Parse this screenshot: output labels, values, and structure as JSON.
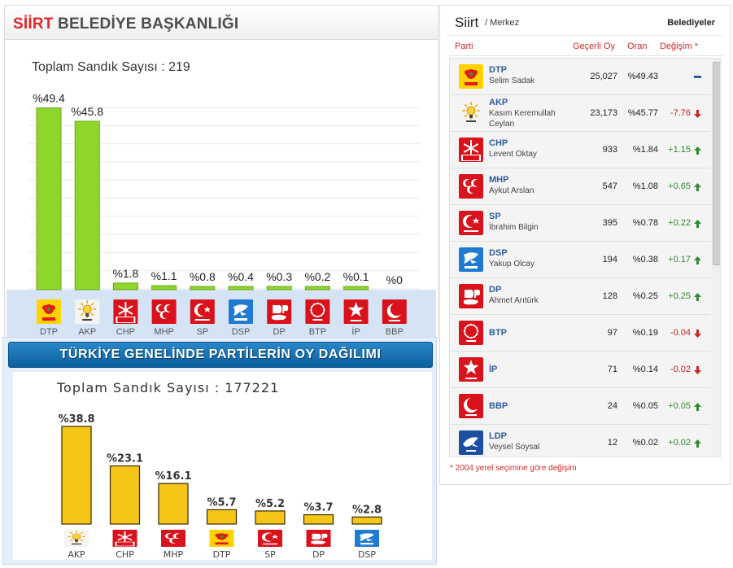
{
  "siirt_panel": {
    "title_red": "SİİRT",
    "title_gray": "BELEDİYE BAŞKANLIĞI",
    "total": "Toplam Sandık Sayısı : 219",
    "bar_color": "#8fd62a"
  },
  "chart_data": [
    {
      "type": "bar",
      "title": "SİİRT BELEDİYE BAŞKANLIĞI",
      "categories": [
        "DTP",
        "AKP",
        "CHP",
        "MHP",
        "SP",
        "DSP",
        "DP",
        "BTP",
        "İP",
        "BBP"
      ],
      "values": [
        49.4,
        45.8,
        1.8,
        1.1,
        0.8,
        0.4,
        0.3,
        0.2,
        0.1,
        0
      ],
      "value_labels": [
        "%49.4",
        "%45.8",
        "%1.8",
        "%1.1",
        "%0.8",
        "%0.4",
        "%0.3",
        "%0.2",
        "%0.1",
        "%0"
      ],
      "ylim": [
        0,
        55
      ],
      "grid": true
    },
    {
      "type": "bar",
      "title": "TÜRKİYE GENELİNDE PARTİLERİN OY DAĞILIMI",
      "categories": [
        "AKP",
        "CHP",
        "MHP",
        "DTP",
        "SP",
        "DP",
        "DSP"
      ],
      "values": [
        38.8,
        23.1,
        16.1,
        5.7,
        5.2,
        3.7,
        2.8
      ],
      "value_labels": [
        "%38.8",
        "%23.1",
        "%16.1",
        "%5.7",
        "%5.2",
        "%3.7",
        "%2.8"
      ],
      "ylim": [
        0,
        42
      ],
      "grid": false
    }
  ],
  "turkey_panel": {
    "title": "TÜRKİYE GENELİNDE PARTİLERİN OY DAĞILIMI",
    "total": "Toplam Sandık Sayısı : 177221",
    "bar_color": "#f5c518"
  },
  "results_panel": {
    "city": "Siirt",
    "district": "/ Merkez",
    "type": "Belediyeler",
    "headers": {
      "party": "Parti",
      "valid": "Geçerli Oy",
      "ratio": "Oran",
      "change": "Değişim *"
    },
    "rows": [
      {
        "party": "DTP",
        "candidate": "Selim Sadak",
        "votes": "25,027",
        "ratio": "%49.43",
        "change": "",
        "trend": "none"
      },
      {
        "party": "AKP",
        "candidate": "Kasım Keremullah Ceylan",
        "votes": "23,173",
        "ratio": "%45.77",
        "change": "-7.76",
        "trend": "down"
      },
      {
        "party": "CHP",
        "candidate": "Levent Oktay",
        "votes": "933",
        "ratio": "%1.84",
        "change": "+1.15",
        "trend": "up"
      },
      {
        "party": "MHP",
        "candidate": "Aykut Arslan",
        "votes": "547",
        "ratio": "%1.08",
        "change": "+0.65",
        "trend": "up"
      },
      {
        "party": "SP",
        "candidate": "İbrahim Bilgin",
        "votes": "395",
        "ratio": "%0.78",
        "change": "+0.22",
        "trend": "up"
      },
      {
        "party": "DSP",
        "candidate": "Yakup Olcay",
        "votes": "194",
        "ratio": "%0.38",
        "change": "+0.17",
        "trend": "up"
      },
      {
        "party": "DP",
        "candidate": "Ahmet Arıtürk",
        "votes": "128",
        "ratio": "%0.25",
        "change": "+0.25",
        "trend": "up"
      },
      {
        "party": "BTP",
        "candidate": "",
        "votes": "97",
        "ratio": "%0.19",
        "change": "-0.04",
        "trend": "down"
      },
      {
        "party": "İP",
        "candidate": "",
        "votes": "71",
        "ratio": "%0.14",
        "change": "-0.02",
        "trend": "down"
      },
      {
        "party": "BBP",
        "candidate": "",
        "votes": "24",
        "ratio": "%0.05",
        "change": "+0.05",
        "trend": "up"
      },
      {
        "party": "LDP",
        "candidate": "Veysel Soysal",
        "votes": "12",
        "ratio": "%0.02",
        "change": "+0.02",
        "trend": "up"
      }
    ],
    "note": "* 2004 yerel seçimine göre değişim"
  },
  "colors": {
    "up": "#2e8b2e",
    "down": "#cc2222",
    "accent_red": "#e0262c",
    "party_blue": "#2d5d9b"
  },
  "logo_icons": {
    "DTP": "dtp-rose-logo",
    "AKP": "akp-bulb-logo",
    "CHP": "chp-six-arrows-logo",
    "MHP": "mhp-crescents-logo",
    "SP": "sp-crescent-star-logo",
    "DSP": "dsp-dove-logo",
    "DP": "dp-horse-logo",
    "BTP": "btp-stars-logo",
    "İP": "ip-star-logo",
    "BBP": "bbp-crescent-logo",
    "LDP": "ldp-dolphin-logo"
  }
}
